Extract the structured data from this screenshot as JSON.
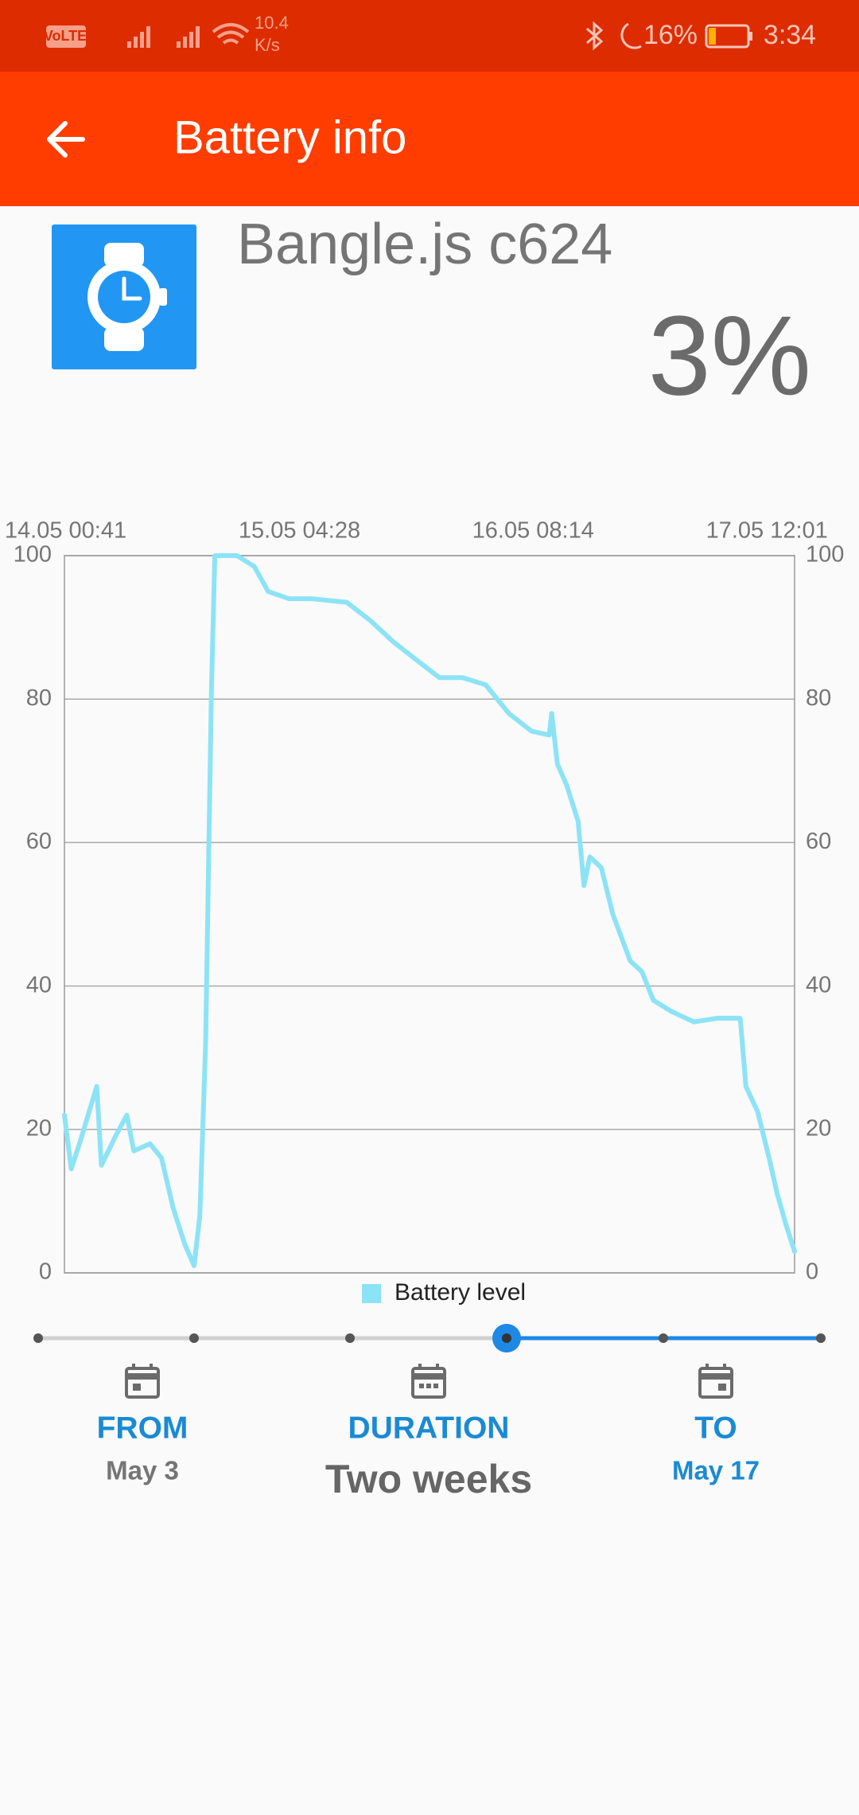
{
  "status_bar": {
    "network_badge": "VoLTE",
    "speed_value": "10.4",
    "speed_unit": "K/s",
    "battery": "16%",
    "time": "3:34"
  },
  "app_bar": {
    "title": "Battery info"
  },
  "device": {
    "name": "Bangle.js c624",
    "battery_level": "3%"
  },
  "chart_data": {
    "type": "line",
    "x": [
      14.022,
      14.056,
      14.102,
      14.182,
      14.205,
      14.274,
      14.331,
      14.366,
      14.446,
      14.503,
      14.561,
      14.618,
      14.664,
      14.693,
      14.721,
      14.75,
      14.767,
      14.876,
      14.962,
      15.031,
      15.134,
      15.248,
      15.42,
      15.535,
      15.65,
      15.764,
      15.879,
      15.993,
      16.108,
      16.223,
      16.337,
      16.423,
      16.435,
      16.463,
      16.509,
      16.566,
      16.595,
      16.624,
      16.681,
      16.738,
      16.824,
      16.882,
      16.939,
      17.025,
      17.139,
      17.254,
      17.369,
      17.397,
      17.455,
      17.512,
      17.552,
      17.598,
      17.638
    ],
    "series": [
      {
        "name": "Battery level",
        "color": "#8de3f6",
        "values": [
          22,
          14.5,
          18.5,
          26,
          15,
          19,
          22,
          17,
          18,
          16,
          9,
          4,
          1,
          8,
          32,
          81,
          100,
          100,
          98.5,
          95,
          94,
          94,
          93.5,
          91,
          88,
          85.5,
          83,
          83,
          82,
          78,
          75.5,
          75,
          78,
          71,
          68,
          63,
          54,
          58,
          56.5,
          50,
          43.5,
          42,
          38,
          36.5,
          35,
          35.5,
          35.5,
          26,
          22.5,
          16,
          11,
          6.5,
          3
        ]
      }
    ],
    "xlim": [
      14.022,
      17.638
    ],
    "xticks": [
      {
        "value": 14.028,
        "label": "14.05 00:41"
      },
      {
        "value": 15.186,
        "label": "15.05 04:28"
      },
      {
        "value": 16.343,
        "label": "16.05 08:14"
      },
      {
        "value": 17.501,
        "label": "17.05 12:01"
      }
    ],
    "ylim": [
      0,
      100
    ],
    "yticks": [
      0,
      20,
      40,
      60,
      80,
      100
    ],
    "y2lim": [
      0,
      100
    ],
    "y2ticks": [
      0,
      20,
      40,
      60,
      80,
      100
    ],
    "grid": true,
    "legend": "bottom"
  },
  "date_range": {
    "from_label": "FROM",
    "from_value": "May 3",
    "duration_label": "DURATION",
    "duration_value": "Two weeks",
    "to_label": "TO",
    "to_value": "May 17"
  }
}
